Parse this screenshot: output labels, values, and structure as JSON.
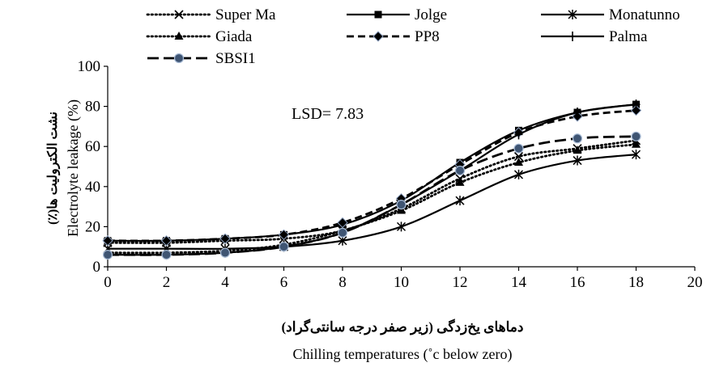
{
  "chart_data": {
    "type": "line",
    "annotation": "LSD= 7.83",
    "xlabel_fa": "دماهای یخ‌زدگی (زیر صفر درجه سانتی‌گراد)",
    "xlabel_en": "Chilling temperatures (˚c below zero)",
    "ylabel_fa": "نشت الکترولیت ها(٪)",
    "ylabel_en": "Electrolyte leakage (%)",
    "xlim": [
      0,
      20
    ],
    "ylim": [
      0,
      100
    ],
    "x_ticks": [
      "0",
      "2",
      "4",
      "6",
      "8",
      "10",
      "12",
      "14",
      "16",
      "18",
      "20"
    ],
    "y_ticks": [
      "0",
      "20",
      "40",
      "60",
      "80",
      "100"
    ],
    "grid": false,
    "legend_position": "top",
    "x": [
      0,
      2,
      4,
      6,
      8,
      10,
      12,
      14,
      16,
      18
    ],
    "series": [
      {
        "name": "Super Ma",
        "marker": "x",
        "dash": "dotted",
        "values": [
          12,
          12,
          13,
          14,
          18,
          29,
          44,
          55,
          59,
          63
        ]
      },
      {
        "name": "Jolge",
        "marker": "square",
        "dash": "solid",
        "values": [
          13,
          13,
          14,
          16,
          21,
          33,
          52,
          68,
          77,
          81
        ]
      },
      {
        "name": "Monatunno",
        "marker": "star",
        "dash": "solid",
        "values": [
          9,
          9,
          9,
          10,
          13,
          20,
          33,
          46,
          53,
          56
        ]
      },
      {
        "name": "Giada",
        "marker": "triangle",
        "dash": "dotted",
        "values": [
          7,
          7,
          8,
          11,
          18,
          28,
          42,
          52,
          58,
          61
        ]
      },
      {
        "name": "PP8",
        "marker": "diamond",
        "dash": "dashed",
        "values": [
          13,
          13,
          14,
          16,
          22,
          34,
          51,
          67,
          75,
          78
        ]
      },
      {
        "name": "Palma",
        "marker": "plus",
        "dash": "solid",
        "values": [
          6,
          6,
          7,
          10,
          17,
          31,
          48,
          66,
          77,
          81
        ]
      },
      {
        "name": "SBSI1",
        "marker": "circle",
        "dash": "longdash",
        "values": [
          6,
          6,
          7,
          10,
          17,
          31,
          48,
          59,
          64,
          65
        ]
      }
    ]
  }
}
